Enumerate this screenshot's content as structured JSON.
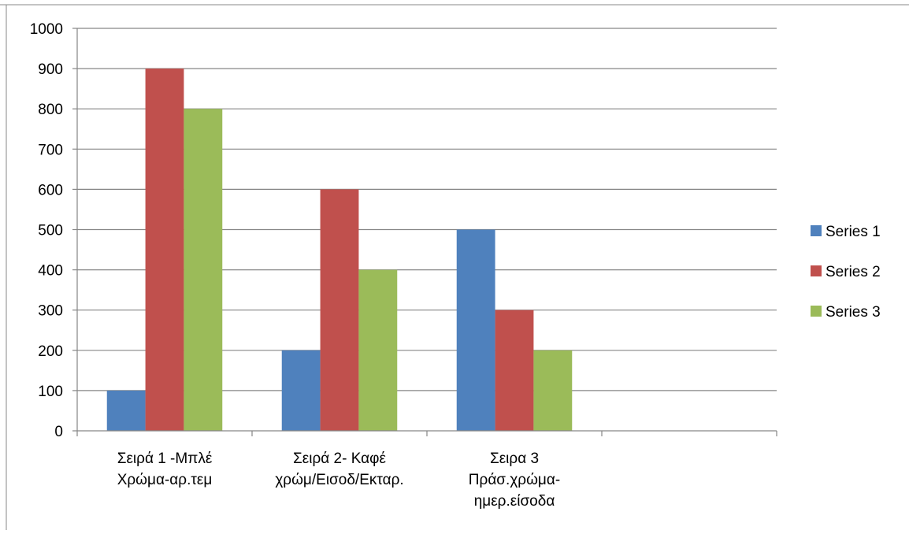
{
  "chart_data": {
    "type": "bar",
    "categories": [
      [
        "Σειρά 1 -Μπλέ",
        "Χρώμα-αρ.τεμ"
      ],
      [
        "Σειρά 2- Καφέ",
        "χρώμ/Εισοδ/Εκταρ."
      ],
      [
        "Σειρα 3",
        "Πράσ.χρώμα-",
        "ημερ.είσοδα"
      ],
      [
        ""
      ]
    ],
    "series": [
      {
        "name": "Series 1",
        "values": [
          100,
          200,
          500,
          null
        ],
        "color": "#4F81BD"
      },
      {
        "name": "Series 2",
        "values": [
          900,
          600,
          300,
          null
        ],
        "color": "#C0504D"
      },
      {
        "name": "Series 3",
        "values": [
          800,
          400,
          200,
          null
        ],
        "color": "#9BBB59"
      }
    ],
    "ylim": [
      0,
      1000
    ],
    "yticks": [
      "0",
      "100",
      "200",
      "300",
      "400",
      "500",
      "600",
      "700",
      "800",
      "900",
      "1000"
    ],
    "grid": true,
    "legend_position": "right"
  }
}
